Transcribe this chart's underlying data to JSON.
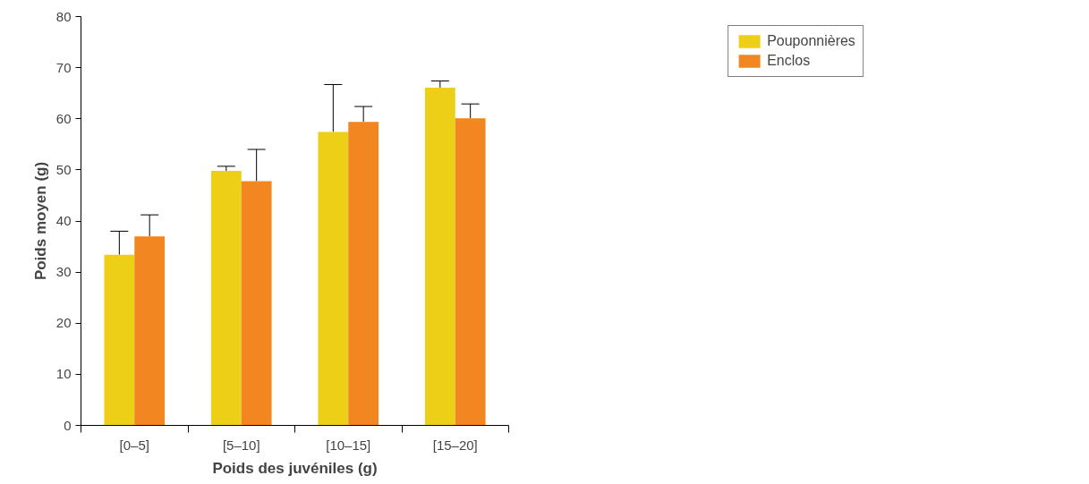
{
  "chart_data": {
    "type": "bar",
    "xlabel": "Poids des juvéniles (g)",
    "ylabel": "Poids moyen (g)",
    "categories": [
      "[0–5]",
      "[5–10]",
      "[10–15]",
      "[15–20]"
    ],
    "series": [
      {
        "name": "Pouponnières",
        "color": "#eecf17",
        "values": [
          33.4,
          49.8,
          57.4,
          66.1
        ],
        "errors": [
          [
            33.4,
            38.0
          ],
          [
            49.8,
            50.7
          ],
          [
            57.4,
            66.7
          ],
          [
            66.1,
            67.4
          ]
        ]
      },
      {
        "name": "Enclos",
        "color": "#f28721",
        "values": [
          37.0,
          47.8,
          59.4,
          60.1
        ],
        "errors": [
          [
            37.0,
            41.2
          ],
          [
            47.8,
            54.0
          ],
          [
            59.4,
            62.4
          ],
          [
            60.1,
            62.9
          ]
        ]
      }
    ],
    "ylim": [
      0,
      80
    ],
    "yticks": [
      0,
      10,
      20,
      30,
      40,
      50,
      60,
      70,
      80
    ],
    "grid": false,
    "legend": "top right"
  }
}
